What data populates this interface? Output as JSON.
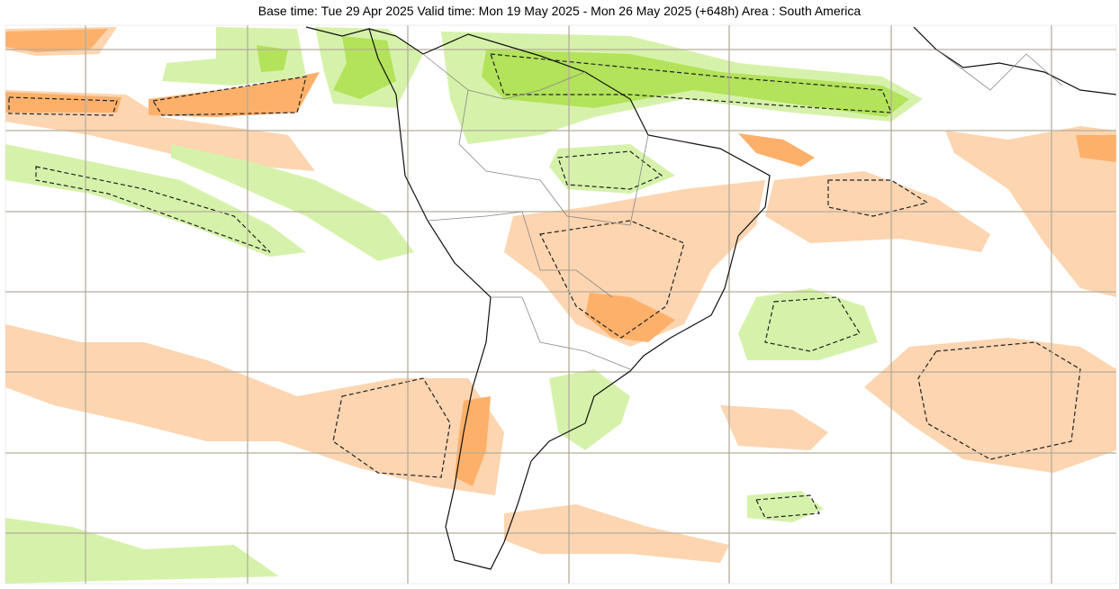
{
  "header": {
    "title": "Base time: Tue 29 Apr 2025 Valid time: Mon 19 May 2025 - Mon 26 May 2025 (+648h) Area : South America"
  }
}
